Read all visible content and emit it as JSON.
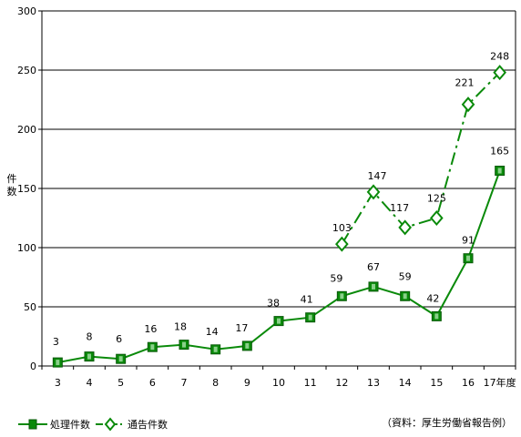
{
  "chart_data": {
    "type": "line",
    "ylabel": "件数",
    "ylim": [
      0,
      300
    ],
    "yticks": [
      0,
      50,
      100,
      150,
      200,
      250,
      300
    ],
    "categories": [
      "3",
      "4",
      "5",
      "6",
      "7",
      "8",
      "9",
      "10",
      "11",
      "12",
      "13",
      "14",
      "15",
      "16",
      "17年度"
    ],
    "grid": "horizontal",
    "legend_position": "bottom-left",
    "series": [
      {
        "name": "処理件数",
        "color": "#0a8a0a",
        "marker": "filled-square",
        "line_style": "solid",
        "values": [
          3,
          8,
          6,
          16,
          18,
          14,
          17,
          38,
          41,
          59,
          67,
          59,
          42,
          91,
          165
        ]
      },
      {
        "name": "通告件数",
        "color": "#0a8a0a",
        "marker": "hollow-diamond",
        "line_style": "dash-dot",
        "values": [
          null,
          null,
          null,
          null,
          null,
          null,
          null,
          null,
          null,
          103,
          147,
          117,
          125,
          221,
          248
        ]
      }
    ],
    "source_note": "（資料：厚生労働省報告例）"
  }
}
